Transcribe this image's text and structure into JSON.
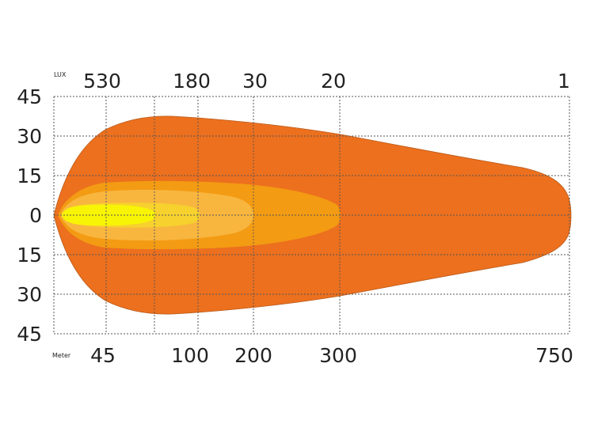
{
  "chart_data": {
    "type": "area",
    "title": "",
    "lux_unit_label": "LUX",
    "meter_unit_label": "Meter",
    "lux_ticks": [
      {
        "label": "530",
        "meter": 45
      },
      {
        "label": "180",
        "meter": 100
      },
      {
        "label": "30",
        "meter": 200
      },
      {
        "label": "20",
        "meter": 300
      },
      {
        "label": "1",
        "meter": 750
      }
    ],
    "meter_ticks": [
      {
        "label": "45",
        "value": 45
      },
      {
        "label": "100",
        "value": 100
      },
      {
        "label": "200",
        "value": 200
      },
      {
        "label": "300",
        "value": 300
      },
      {
        "label": "750",
        "value": 750
      }
    ],
    "width_ticks": [
      {
        "label": "45",
        "value": 45
      },
      {
        "label": "30",
        "value": 30
      },
      {
        "label": "15",
        "value": 15
      },
      {
        "label": "0",
        "value": 0
      },
      {
        "label": "15",
        "value": -15
      },
      {
        "label": "30",
        "value": -30
      },
      {
        "label": "45",
        "value": -45
      }
    ],
    "xlim": [
      0,
      750
    ],
    "ylim": [
      -45,
      45
    ],
    "grid": true,
    "zones": [
      {
        "lux": "1",
        "reach_m": 750,
        "half_width_m": 38,
        "color": "#ec701e"
      },
      {
        "lux": "20",
        "reach_m": 300,
        "half_width_m": 14,
        "color": "#f39b13"
      },
      {
        "lux": "30",
        "reach_m": 200,
        "half_width_m": 11,
        "color": "#f8b63f"
      },
      {
        "lux": "180",
        "reach_m": 100,
        "half_width_m": 6,
        "color": "#f7d12e"
      },
      {
        "lux": "530",
        "reach_m": 45,
        "half_width_m": 4,
        "color": "#f8f405"
      }
    ]
  }
}
